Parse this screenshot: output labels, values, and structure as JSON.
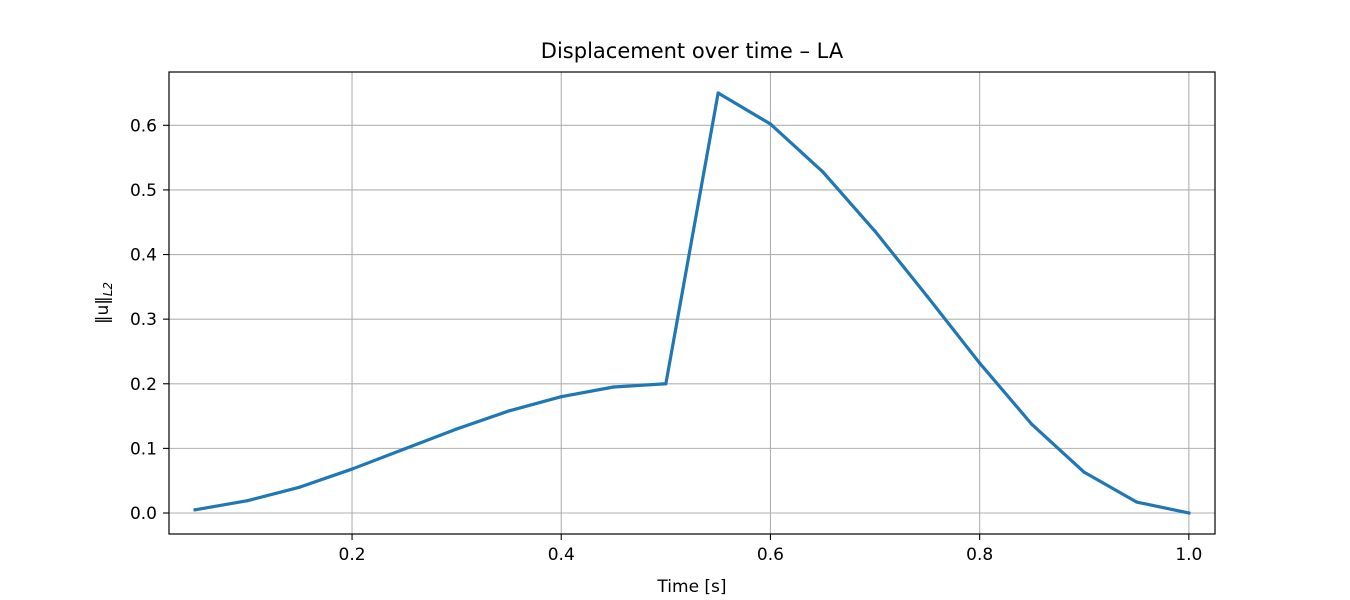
{
  "chart_data": {
    "type": "line",
    "title": "Displacement over time – LA",
    "xlabel": "Time [s]",
    "ylabel": "‖u‖",
    "ylabel_subscript": "L2",
    "xlim": [
      0.025,
      1.025
    ],
    "ylim": [
      -0.0325,
      0.6825
    ],
    "xticks": [
      0.2,
      0.4,
      0.6,
      0.8,
      1.0
    ],
    "xtick_labels": [
      "0.2",
      "0.4",
      "0.6",
      "0.8",
      "1.0"
    ],
    "yticks": [
      0.0,
      0.1,
      0.2,
      0.3,
      0.4,
      0.5,
      0.6
    ],
    "ytick_labels": [
      "0.0",
      "0.1",
      "0.2",
      "0.3",
      "0.4",
      "0.5",
      "0.6"
    ],
    "grid": true,
    "color": "#1f77b4",
    "series": [
      {
        "x": [
          0.05,
          0.1,
          0.15,
          0.2,
          0.25,
          0.3,
          0.35,
          0.4,
          0.45,
          0.5,
          0.55,
          0.6,
          0.65,
          0.7,
          0.75,
          0.8,
          0.85,
          0.9,
          0.95,
          1.0
        ],
        "values": [
          0.005,
          0.019,
          0.04,
          0.068,
          0.099,
          0.13,
          0.158,
          0.18,
          0.195,
          0.2,
          0.65,
          0.602,
          0.528,
          0.436,
          0.335,
          0.232,
          0.137,
          0.063,
          0.017,
          0.0
        ]
      }
    ]
  }
}
